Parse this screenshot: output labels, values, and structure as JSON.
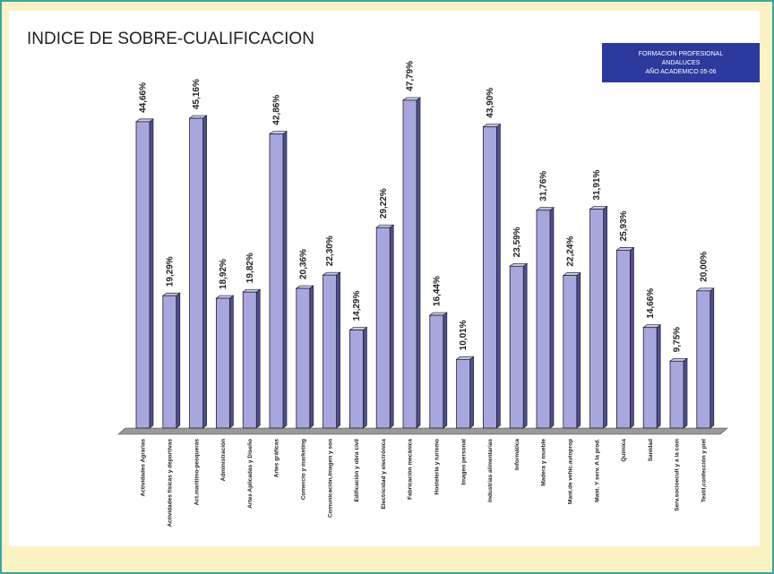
{
  "chart_data": {
    "type": "bar",
    "title": "INDICE DE SOBRE-CUALIFICACION",
    "legend_lines": [
      "FORMACION PROFESIONAL",
      "ANDALUCES",
      "AÑO ACADEMICO 05-06"
    ],
    "categories": [
      "Actividades Agrarias",
      "Actividades físicas y deportivas",
      "Act.marítimo-pesqueras",
      "Administración",
      "Artes Aplicadas y Diseño",
      "Artes gráficas",
      "Comercio y marketing",
      "Comunicación,imagen y son",
      "Edificación y obra civil",
      "Electricidad y electrónica",
      "Fabricación mecánica",
      "Hostelería y turismo",
      "Imagen personal",
      "Industrias alimentarias",
      "Informática",
      "Madera y mueble",
      "Mant.de vehíc.autoprop",
      "Mant. Y serv. A la prod.",
      "Química",
      "Sanidad",
      "Serv.socioecult y a la com",
      "Textil,confección y piel"
    ],
    "values": [
      44.66,
      19.29,
      45.16,
      18.92,
      19.82,
      42.86,
      20.36,
      22.3,
      14.29,
      29.22,
      47.79,
      16.44,
      10.01,
      43.9,
      23.59,
      31.76,
      22.24,
      31.91,
      25.93,
      14.66,
      9.75,
      20.0
    ],
    "value_labels": [
      "44,66%",
      "19,29%",
      "45,16%",
      "18,92%",
      "19,82%",
      "42,86%",
      "20,36%",
      "22,30%",
      "14,29%",
      "29,22%",
      "47,79%",
      "16,44%",
      "10,01%",
      "43,90%",
      "23,59%",
      "31,76%",
      "22,24%",
      "31,91%",
      "25,93%",
      "14,66%",
      "9,75%",
      "20,00%"
    ],
    "color": "#a7a7de",
    "ylim": [
      0,
      50
    ]
  }
}
